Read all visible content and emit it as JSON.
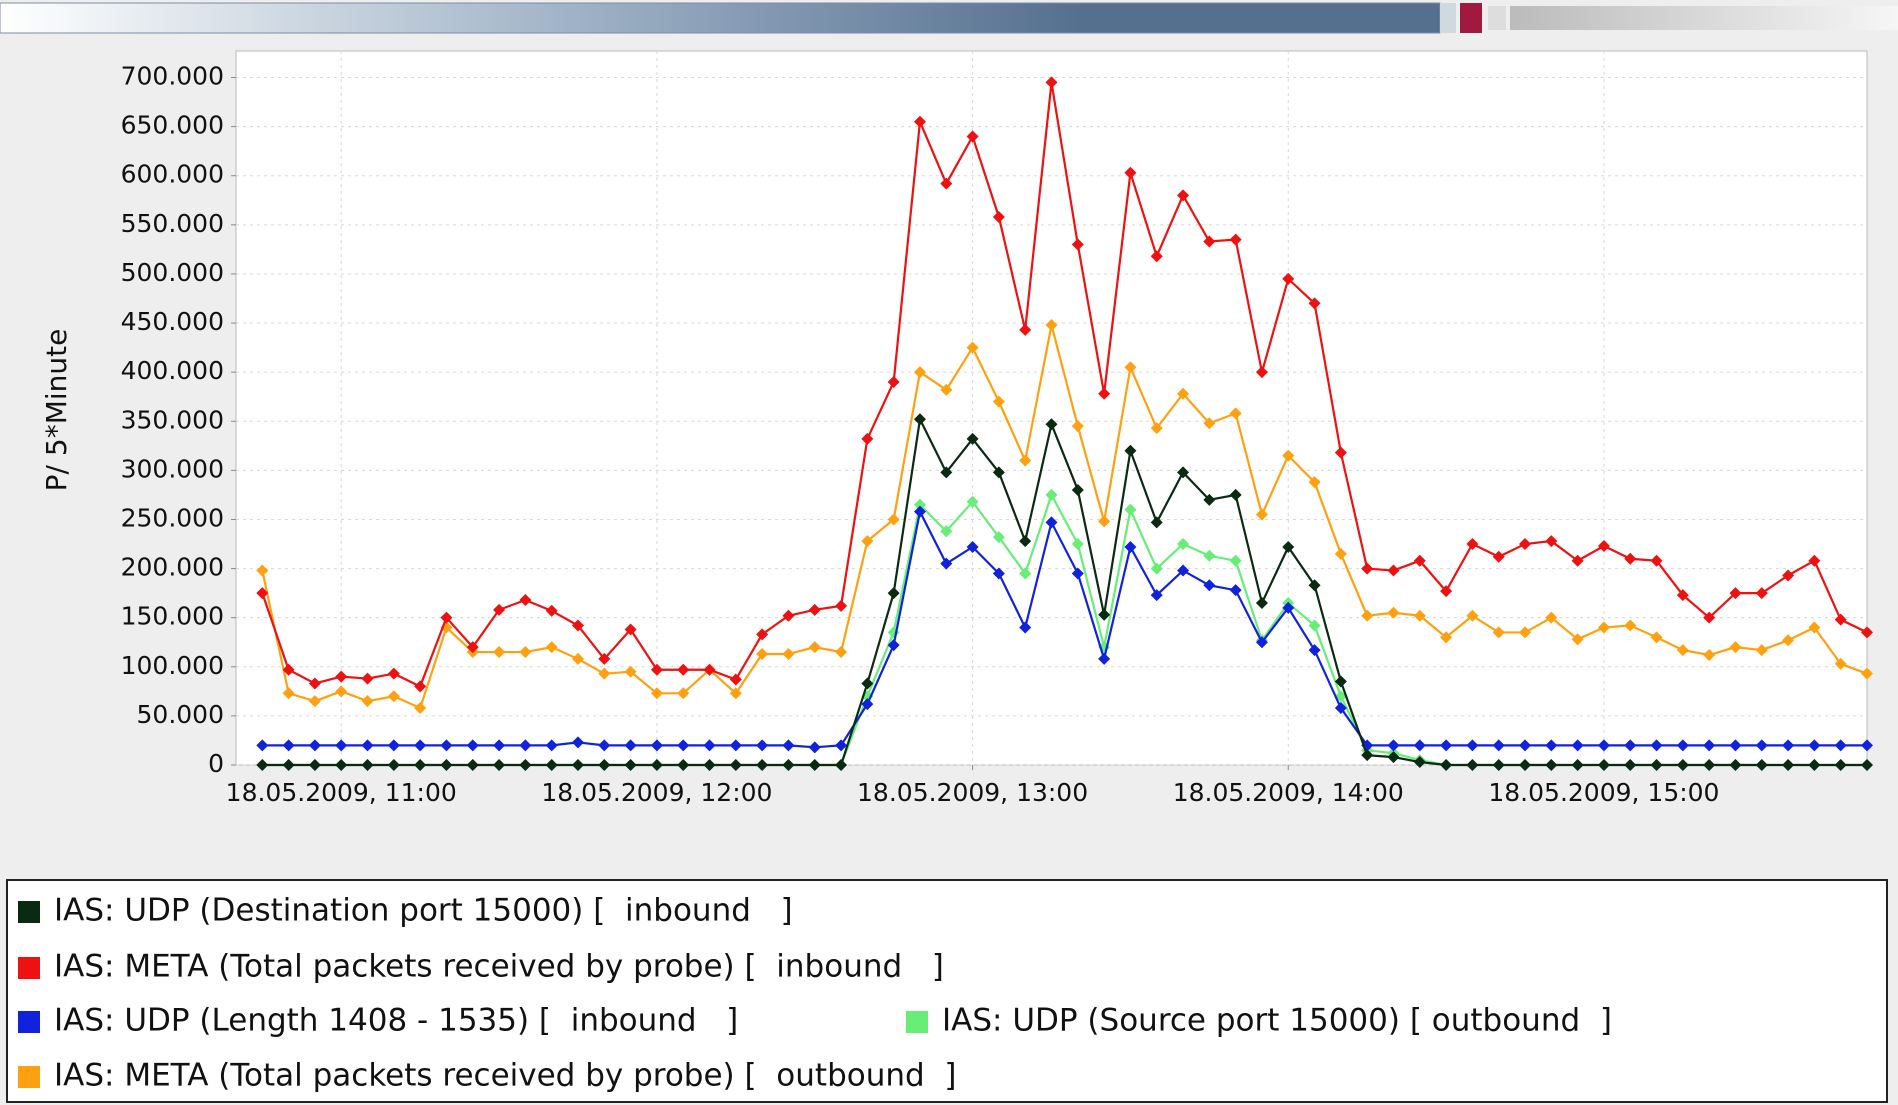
{
  "chart_data": {
    "type": "line",
    "ylabel": "P/ 5*Minute",
    "x": [
      "18.05.2009, 10:45",
      "18.05.2009, 10:50",
      "18.05.2009, 10:55",
      "18.05.2009, 11:00",
      "18.05.2009, 11:05",
      "18.05.2009, 11:10",
      "18.05.2009, 11:15",
      "18.05.2009, 11:20",
      "18.05.2009, 11:25",
      "18.05.2009, 11:30",
      "18.05.2009, 11:35",
      "18.05.2009, 11:40",
      "18.05.2009, 11:45",
      "18.05.2009, 11:50",
      "18.05.2009, 11:55",
      "18.05.2009, 12:00",
      "18.05.2009, 12:05",
      "18.05.2009, 12:10",
      "18.05.2009, 12:15",
      "18.05.2009, 12:20",
      "18.05.2009, 12:25",
      "18.05.2009, 12:30",
      "18.05.2009, 12:35",
      "18.05.2009, 12:40",
      "18.05.2009, 12:45",
      "18.05.2009, 12:50",
      "18.05.2009, 12:55",
      "18.05.2009, 13:00",
      "18.05.2009, 13:05",
      "18.05.2009, 13:10",
      "18.05.2009, 13:15",
      "18.05.2009, 13:20",
      "18.05.2009, 13:25",
      "18.05.2009, 13:30",
      "18.05.2009, 13:35",
      "18.05.2009, 13:40",
      "18.05.2009, 13:45",
      "18.05.2009, 13:50",
      "18.05.2009, 13:55",
      "18.05.2009, 14:00",
      "18.05.2009, 14:05",
      "18.05.2009, 14:10",
      "18.05.2009, 14:15",
      "18.05.2009, 14:20",
      "18.05.2009, 14:25",
      "18.05.2009, 14:30",
      "18.05.2009, 14:35",
      "18.05.2009, 14:40",
      "18.05.2009, 14:45",
      "18.05.2009, 14:50",
      "18.05.2009, 14:55",
      "18.05.2009, 15:00",
      "18.05.2009, 15:05",
      "18.05.2009, 15:10",
      "18.05.2009, 15:15",
      "18.05.2009, 15:20",
      "18.05.2009, 15:25",
      "18.05.2009, 15:30",
      "18.05.2009, 15:35",
      "18.05.2009, 15:40",
      "18.05.2009, 15:45",
      "18.05.2009, 15:50"
    ],
    "xlim": [
      "18.05.2009, 10:40",
      "18.05.2009, 15:50"
    ],
    "xticks": [
      "18.05.2009, 11:00",
      "18.05.2009, 12:00",
      "18.05.2009, 13:00",
      "18.05.2009, 14:00",
      "18.05.2009, 15:00"
    ],
    "ylim": [
      0,
      727000
    ],
    "yticks": [
      0,
      {
        "value": 50000,
        "label": "50.000"
      },
      {
        "value": 100000,
        "label": "100.000"
      },
      {
        "value": 150000,
        "label": "150.000"
      },
      {
        "value": 200000,
        "label": "200.000"
      },
      {
        "value": 250000,
        "label": "250.000"
      },
      {
        "value": 300000,
        "label": "300.000"
      },
      {
        "value": 350000,
        "label": "350.000"
      },
      {
        "value": 400000,
        "label": "400.000"
      },
      {
        "value": 450000,
        "label": "450.000"
      },
      {
        "value": 500000,
        "label": "500.000"
      },
      {
        "value": 550000,
        "label": "550.000"
      },
      {
        "value": 600000,
        "label": "600.000"
      },
      {
        "value": 650000,
        "label": "650.000"
      },
      {
        "value": 700000,
        "label": "700.000"
      }
    ],
    "grid": true,
    "series": [
      {
        "name": "IAS: UDP (Destination port 15000) [  inbound   ]",
        "color": "#0a2a12",
        "values": [
          0,
          0,
          0,
          0,
          0,
          0,
          0,
          0,
          0,
          0,
          0,
          0,
          0,
          0,
          0,
          0,
          0,
          0,
          0,
          0,
          0,
          0,
          0,
          83000,
          175000,
          352000,
          298000,
          332000,
          298000,
          228000,
          347000,
          280000,
          153000,
          320000,
          247000,
          298000,
          270000,
          275000,
          165000,
          222000,
          183000,
          85000,
          10000,
          8000,
          3000,
          0,
          0,
          0,
          0,
          0,
          0,
          0,
          0,
          0,
          0,
          0,
          0,
          0,
          0,
          0,
          0,
          0
        ]
      },
      {
        "name": "IAS: META (Total packets received by probe) [  inbound   ]",
        "color": "#ee1111",
        "values": [
          175000,
          97000,
          83000,
          90000,
          88000,
          93000,
          80000,
          150000,
          120000,
          158000,
          168000,
          157000,
          142000,
          108000,
          138000,
          97000,
          97000,
          97000,
          87000,
          133000,
          152000,
          158000,
          162000,
          332000,
          390000,
          655000,
          592000,
          640000,
          558000,
          443000,
          695000,
          530000,
          378000,
          603000,
          518000,
          580000,
          533000,
          535000,
          400000,
          495000,
          470000,
          318000,
          200000,
          198000,
          208000,
          177000,
          225000,
          212000,
          225000,
          228000,
          208000,
          223000,
          210000,
          208000,
          173000,
          150000,
          175000,
          175000,
          193000,
          208000,
          148000,
          135000
        ]
      },
      {
        "name": "IAS: UDP (Length 1408 - 1535) [  inbound   ]",
        "color": "#1122dd",
        "values": [
          20000,
          20000,
          20000,
          20000,
          20000,
          20000,
          20000,
          20000,
          20000,
          20000,
          20000,
          20000,
          23000,
          20000,
          20000,
          20000,
          20000,
          20000,
          20000,
          20000,
          20000,
          18000,
          20000,
          62000,
          122000,
          258000,
          205000,
          222000,
          195000,
          140000,
          247000,
          195000,
          108000,
          222000,
          173000,
          198000,
          183000,
          178000,
          125000,
          160000,
          117000,
          58000,
          20000,
          20000,
          20000,
          20000,
          20000,
          20000,
          20000,
          20000,
          20000,
          20000,
          20000,
          20000,
          20000,
          20000,
          20000,
          20000,
          20000,
          20000,
          20000,
          20000
        ]
      },
      {
        "name": "IAS: UDP (Source port 15000) [ outbound  ]",
        "color": "#66ee77",
        "values": [
          0,
          0,
          0,
          0,
          0,
          0,
          0,
          0,
          0,
          0,
          0,
          0,
          0,
          0,
          0,
          0,
          0,
          0,
          0,
          0,
          0,
          0,
          0,
          70000,
          135000,
          265000,
          238000,
          268000,
          232000,
          195000,
          275000,
          225000,
          120000,
          260000,
          200000,
          225000,
          213000,
          208000,
          127000,
          165000,
          142000,
          70000,
          15000,
          12000,
          5000,
          0,
          0,
          0,
          0,
          0,
          0,
          0,
          0,
          0,
          0,
          0,
          0,
          0,
          0,
          0,
          0,
          0
        ]
      },
      {
        "name": "IAS: META (Total packets received by probe) [  outbound  ]",
        "color": "#ffa011",
        "values": [
          198000,
          73000,
          65000,
          75000,
          65000,
          70000,
          58000,
          140000,
          115000,
          115000,
          115000,
          120000,
          108000,
          93000,
          95000,
          73000,
          73000,
          97000,
          73000,
          113000,
          113000,
          120000,
          115000,
          228000,
          250000,
          400000,
          382000,
          425000,
          370000,
          310000,
          448000,
          345000,
          248000,
          405000,
          343000,
          378000,
          348000,
          358000,
          255000,
          315000,
          288000,
          215000,
          152000,
          155000,
          152000,
          130000,
          152000,
          135000,
          135000,
          150000,
          128000,
          140000,
          142000,
          130000,
          117000,
          112000,
          120000,
          117000,
          127000,
          140000,
          103000,
          93000
        ]
      }
    ]
  }
}
